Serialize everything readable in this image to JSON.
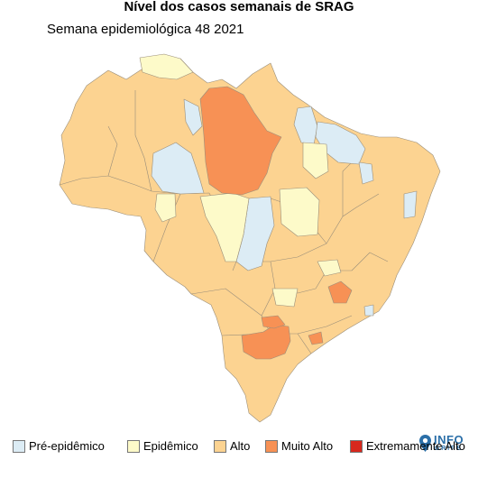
{
  "title": "Nível dos casos semanais de SRAG",
  "subtitle": "Semana epidemiológica 48 2021",
  "logo": {
    "line1": "INFO",
    "line2": "GRIPE"
  },
  "legend": [
    {
      "label": "Pré-epidêmico",
      "color": "#dcecf5"
    },
    {
      "label": "Epidêmico",
      "color": "#fdfac9"
    },
    {
      "label": "Alto",
      "color": "#fcd391"
    },
    {
      "label": "Muito Alto",
      "color": "#f79155"
    },
    {
      "label": "Extremamente Alto",
      "color": "#d7281d"
    }
  ]
}
